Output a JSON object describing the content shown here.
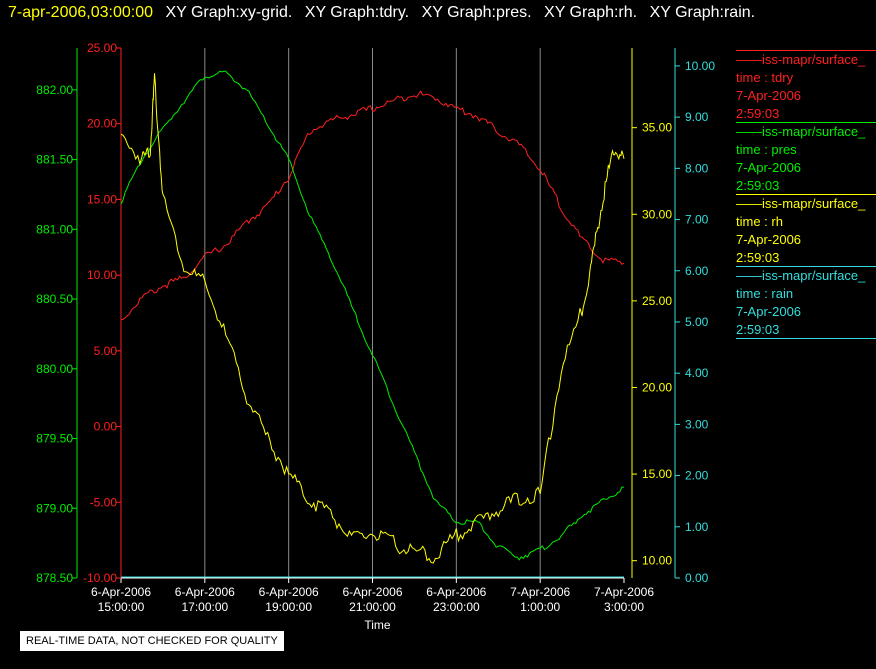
{
  "header": {
    "time": "7-apr-2006,03:00:00",
    "segments": [
      "XY Graph:xy-grid.",
      "XY Graph:tdry.",
      "XY Graph:pres.",
      "XY Graph:rh.",
      "XY Graph:rain."
    ]
  },
  "legend": [
    {
      "header": "——iss-mapr/surface_",
      "var": "time : tdry",
      "date": "7-Apr-2006",
      "time": "2:59:03",
      "color": "#ff2020"
    },
    {
      "header": "——iss-mapr/surface_",
      "var": "time : pres",
      "date": "7-Apr-2006",
      "time": "2:59:03",
      "color": "#00ee00"
    },
    {
      "header": "——iss-mapr/surface_",
      "var": "time : rh",
      "date": "7-Apr-2006",
      "time": "2:59:03",
      "color": "#ffff00"
    },
    {
      "header": "——iss-mapr/surface_",
      "var": "time : rain",
      "date": "7-Apr-2006",
      "time": "2:59:03",
      "color": "#33dddd"
    }
  ],
  "disclaimer": "REAL-TIME DATA, NOT CHECKED FOR QUALITY",
  "chart_data": {
    "type": "line",
    "xlabel": "Time",
    "x_ticks": [
      [
        "6-Apr-2006",
        "15:00:00"
      ],
      [
        "6-Apr-2006",
        "17:00:00"
      ],
      [
        "6-Apr-2006",
        "19:00:00"
      ],
      [
        "6-Apr-2006",
        "21:00:00"
      ],
      [
        "6-Apr-2006",
        "23:00:00"
      ],
      [
        "7-Apr-2006",
        "1:00:00"
      ],
      [
        "7-Apr-2006",
        "3:00:00"
      ]
    ],
    "xlim_hours": [
      0,
      12
    ],
    "axes": [
      {
        "id": "pres",
        "color": "#00ee00",
        "ylim": [
          878.5,
          882.3
        ],
        "ticks": [
          "878.50",
          "879.00",
          "879.50",
          "880.00",
          "880.50",
          "881.00",
          "881.50",
          "882.00"
        ]
      },
      {
        "id": "tdry",
        "color": "#ff2020",
        "ylim": [
          -10,
          25
        ],
        "ticks": [
          "-10.00",
          "-5.00",
          "0.00",
          "5.00",
          "10.00",
          "15.00",
          "20.00",
          "25.00"
        ]
      },
      {
        "id": "rh",
        "color": "#ffff00",
        "ylim": [
          9.0,
          39.6
        ],
        "ticks": [
          "10.00",
          "15.00",
          "20.00",
          "25.00",
          "30.00",
          "35.00"
        ]
      },
      {
        "id": "rain",
        "color": "#33dddd",
        "ylim": [
          0,
          10.35
        ],
        "ticks": [
          "0.00",
          "1.00",
          "2.00",
          "3.00",
          "4.00",
          "5.00",
          "6.00",
          "7.00",
          "8.00",
          "9.00",
          "10.00"
        ]
      }
    ],
    "series": [
      {
        "name": "tdry",
        "axis": "tdry",
        "color": "#ff2020",
        "x": [
          0,
          0.5,
          1,
          1.5,
          2,
          2.5,
          3,
          3.5,
          4,
          4.5,
          5,
          5.5,
          6,
          6.5,
          7,
          7.5,
          8,
          8.5,
          9,
          9.5,
          10,
          10.5,
          11,
          11.5,
          12
        ],
        "y": [
          7.0,
          8.5,
          9.3,
          9.8,
          11.2,
          12.0,
          13.5,
          14.6,
          16.5,
          19.5,
          20.2,
          20.6,
          21.0,
          21.5,
          22.0,
          21.7,
          21.0,
          20.5,
          19.5,
          18.6,
          17.0,
          14.5,
          12.3,
          11.0,
          10.8
        ]
      },
      {
        "name": "pres",
        "axis": "pres",
        "color": "#00ee00",
        "x": [
          0,
          0.5,
          1,
          1.5,
          2,
          2.5,
          3,
          3.5,
          4,
          4.5,
          5,
          5.5,
          6,
          6.5,
          7,
          7.5,
          8,
          8.5,
          9,
          9.5,
          10,
          10.5,
          11,
          11.5,
          12
        ],
        "y": [
          881.2,
          881.5,
          881.72,
          881.92,
          882.1,
          882.12,
          882.0,
          881.75,
          881.5,
          881.1,
          880.8,
          880.45,
          880.1,
          879.75,
          879.4,
          879.05,
          878.9,
          878.9,
          878.72,
          878.65,
          878.7,
          878.8,
          878.95,
          879.05,
          879.15
        ]
      },
      {
        "name": "rh",
        "axis": "rh",
        "color": "#ffff00",
        "x": [
          0,
          0.5,
          0.7,
          0.8,
          1,
          1.5,
          2,
          2.5,
          3,
          3.5,
          4,
          4.5,
          5,
          5.5,
          6,
          6.5,
          7,
          7.5,
          8,
          8.5,
          9,
          9.5,
          10,
          10.5,
          11,
          11.25,
          11.5,
          11.75,
          12
        ],
        "y": [
          34.5,
          33.2,
          33.8,
          37.8,
          31.0,
          27.0,
          26.0,
          23.0,
          19.5,
          17.0,
          15.0,
          13.5,
          12.8,
          11.2,
          11.6,
          11.0,
          10.5,
          10.2,
          11.5,
          12.2,
          13.0,
          13.6,
          13.8,
          21.0,
          24.5,
          27.5,
          31.0,
          33.8,
          33.2
        ]
      },
      {
        "name": "rain",
        "axis": "rain",
        "color": "#33dddd",
        "x": [
          0,
          12
        ],
        "y": [
          0.02,
          0.02
        ]
      }
    ]
  }
}
